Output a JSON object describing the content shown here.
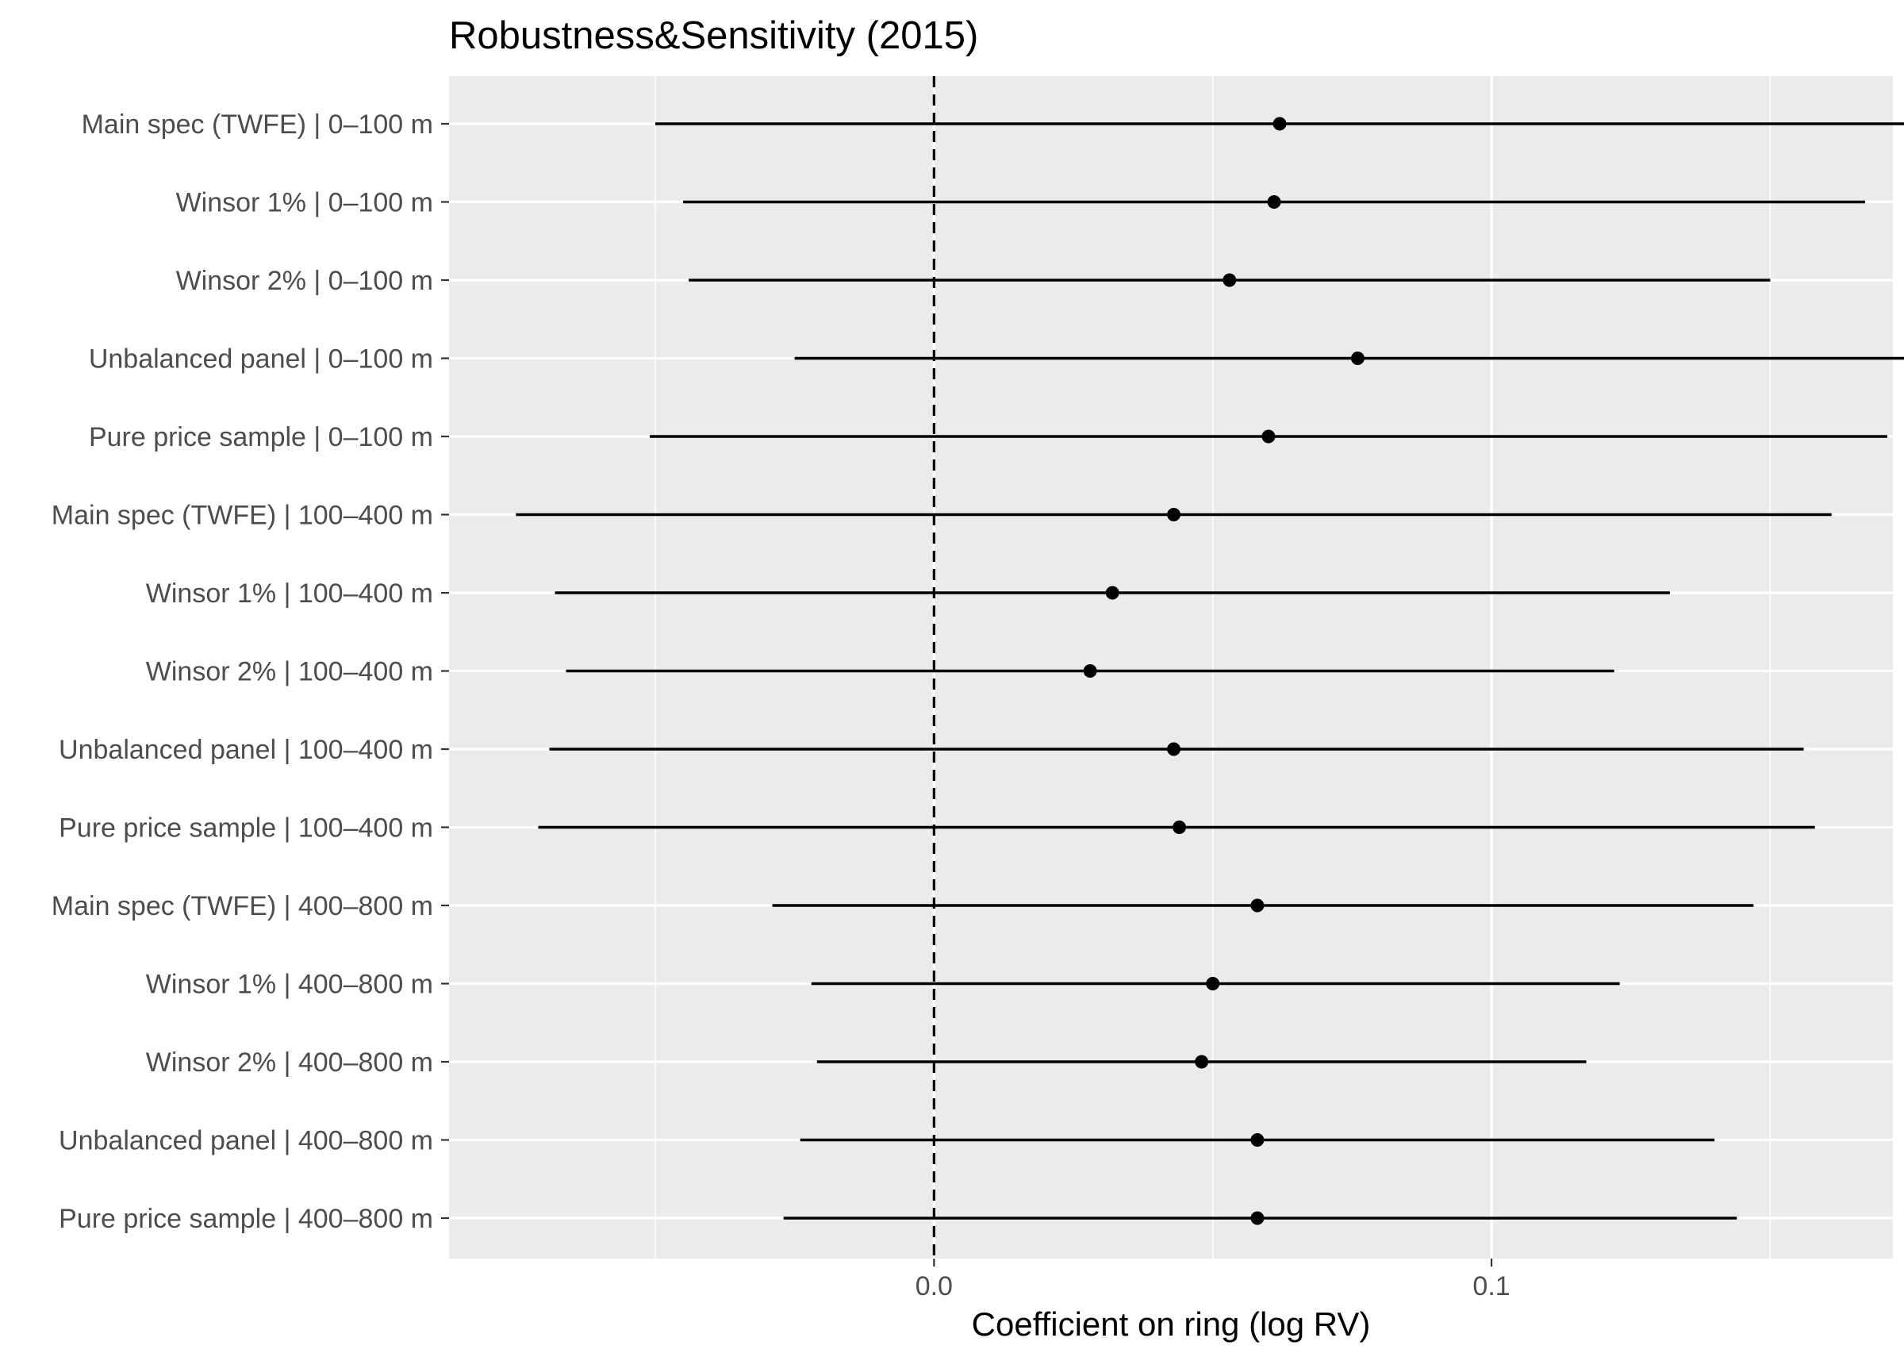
{
  "chart_data": {
    "type": "forest",
    "title": "Robustness&Sensitivity (2015)",
    "xlabel": "Coefficient on ring (log RV)",
    "ylabel": "",
    "xlim": [
      -0.087,
      0.172
    ],
    "x_ticks": [
      0.0,
      0.1
    ],
    "x_tick_labels": [
      "0.0",
      "0.1"
    ],
    "x_minor_ticks": [
      -0.05,
      0.05,
      0.15
    ],
    "reference_line": 0.0,
    "grid": true,
    "legend": "none",
    "colors": {
      "panel_background": "#ebebeb",
      "grid": "#ffffff",
      "marks": "#000000"
    },
    "rows": [
      {
        "label": "Main spec (TWFE) | 0–100 m",
        "estimate": 0.062,
        "ci_low": -0.05,
        "ci_high": 0.174
      },
      {
        "label": "Winsor 1% | 0–100 m",
        "estimate": 0.061,
        "ci_low": -0.045,
        "ci_high": 0.167
      },
      {
        "label": "Winsor 2% | 0–100 m",
        "estimate": 0.053,
        "ci_low": -0.044,
        "ci_high": 0.15
      },
      {
        "label": "Unbalanced panel | 0–100 m",
        "estimate": 0.076,
        "ci_low": -0.025,
        "ci_high": 0.177
      },
      {
        "label": "Pure price sample | 0–100 m",
        "estimate": 0.06,
        "ci_low": -0.051,
        "ci_high": 0.171
      },
      {
        "label": "Main spec (TWFE) | 100–400 m",
        "estimate": 0.043,
        "ci_low": -0.075,
        "ci_high": 0.161
      },
      {
        "label": "Winsor 1% | 100–400 m",
        "estimate": 0.032,
        "ci_low": -0.068,
        "ci_high": 0.132
      },
      {
        "label": "Winsor 2% | 100–400 m",
        "estimate": 0.028,
        "ci_low": -0.066,
        "ci_high": 0.122
      },
      {
        "label": "Unbalanced panel | 100–400 m",
        "estimate": 0.043,
        "ci_low": -0.069,
        "ci_high": 0.156
      },
      {
        "label": "Pure price sample | 100–400 m",
        "estimate": 0.044,
        "ci_low": -0.071,
        "ci_high": 0.158
      },
      {
        "label": "Main spec (TWFE) | 400–800 m",
        "estimate": 0.058,
        "ci_low": -0.029,
        "ci_high": 0.147
      },
      {
        "label": "Winsor 1% | 400–800 m",
        "estimate": 0.05,
        "ci_low": -0.022,
        "ci_high": 0.123
      },
      {
        "label": "Winsor 2% | 400–800 m",
        "estimate": 0.048,
        "ci_low": -0.021,
        "ci_high": 0.117
      },
      {
        "label": "Unbalanced panel | 400–800 m",
        "estimate": 0.058,
        "ci_low": -0.024,
        "ci_high": 0.14
      },
      {
        "label": "Pure price sample | 400–800 m",
        "estimate": 0.058,
        "ci_low": -0.027,
        "ci_high": 0.144
      }
    ]
  }
}
